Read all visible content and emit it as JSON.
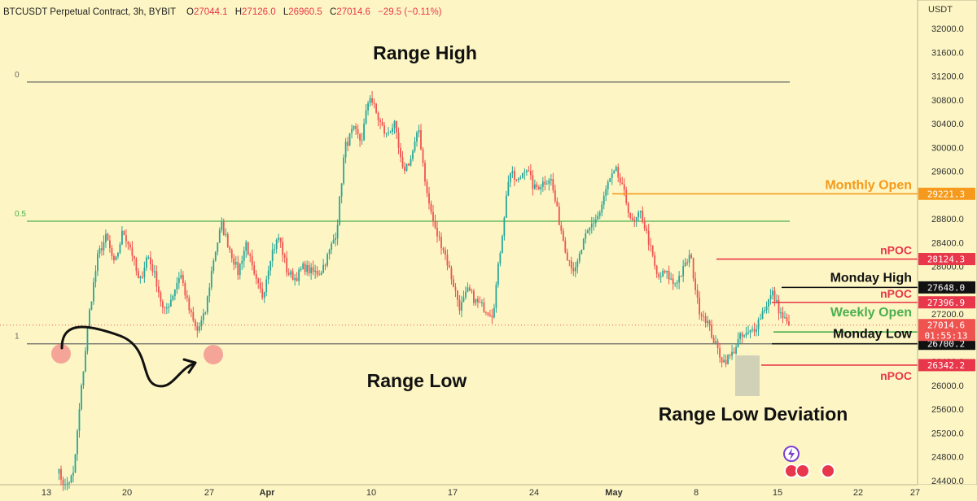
{
  "header": {
    "symbol": "BTCUSDT Perpetual Contract, 3h, BYBIT",
    "o_label": "O",
    "o_value": "27044.1",
    "h_label": "H",
    "h_value": "27126.0",
    "l_label": "L",
    "l_value": "26960.5",
    "c_label": "C",
    "c_value": "27014.6",
    "change": "−29.5 (−0.11%)"
  },
  "colors": {
    "background": "#fdf6c4",
    "up": "#26a69a",
    "down": "#ef5350",
    "orange": "#f59a1c",
    "red_level": "#e8364a",
    "green_level": "#4caf50",
    "black": "#111111"
  },
  "chart_data": {
    "type": "candlestick",
    "currency": "USDT",
    "y_ticks": [
      24400,
      24800,
      25200,
      25600,
      26000,
      26400,
      26800,
      27200,
      27600,
      28000,
      28400,
      28800,
      29200,
      29600,
      30000,
      30400,
      30800,
      31200,
      31600,
      32000
    ],
    "ylim": [
      24200,
      32300
    ],
    "x_ticks": [
      "13",
      "20",
      "27",
      "Apr",
      "10",
      "17",
      "24",
      "May",
      "8",
      "15",
      "22",
      "27"
    ],
    "last_price": 27014.6,
    "countdown": "01:55:13",
    "fib_levels": [
      {
        "label": "0",
        "price": 31100
      },
      {
        "label": "0.5",
        "price": 28760
      },
      {
        "label": "1",
        "price": 26700
      }
    ],
    "levels": [
      {
        "name": "Monthly Open",
        "price": 29221.3,
        "price_label": "29221.3",
        "color": "orange"
      },
      {
        "name": "nPOC",
        "price": 28124.3,
        "price_label": "28124.3",
        "color": "red"
      },
      {
        "name": "Monday High",
        "price": 27648.0,
        "price_label": "27648.0",
        "color": "black"
      },
      {
        "name": "nPOC",
        "price": 27396.9,
        "price_label": "27396.9",
        "color": "red"
      },
      {
        "name": "Weekly Open",
        "price": 26898.2,
        "price_label": "26898.2",
        "color": "green"
      },
      {
        "name": "Monday Low",
        "price": 26700.2,
        "price_label": "26700.2",
        "color": "black"
      },
      {
        "name": "nPOC",
        "price": 26342.2,
        "price_label": "26342.2",
        "color": "red"
      }
    ],
    "annotations": [
      "Range High",
      "Range Low",
      "Range Low Deviation"
    ],
    "path_prices": [
      24600,
      24300,
      24500,
      26000,
      27300,
      28200,
      28500,
      28000,
      28600,
      28300,
      27700,
      28200,
      27800,
      27200,
      27500,
      27900,
      27300,
      26900,
      27200,
      28100,
      28700,
      28300,
      27900,
      28400,
      27800,
      27500,
      28200,
      28500,
      27900,
      27800,
      28000,
      27900,
      27900,
      28200,
      28600,
      30000,
      30300,
      30100,
      30900,
      30500,
      30200,
      30400,
      29600,
      29800,
      30300,
      29200,
      28600,
      28300,
      27800,
      27300,
      27600,
      27400,
      27300,
      27200,
      28400,
      29600,
      29400,
      29700,
      29300,
      29400,
      29500,
      28800,
      28200,
      27900,
      28400,
      28700,
      28900,
      29400,
      29600,
      29200,
      28700,
      28900,
      28400,
      27800,
      27900,
      27700,
      27900,
      28200,
      27300,
      27100,
      26700,
      26400,
      26500,
      26800,
      26850,
      27000,
      27300,
      27550,
      27200,
      27000
    ]
  }
}
